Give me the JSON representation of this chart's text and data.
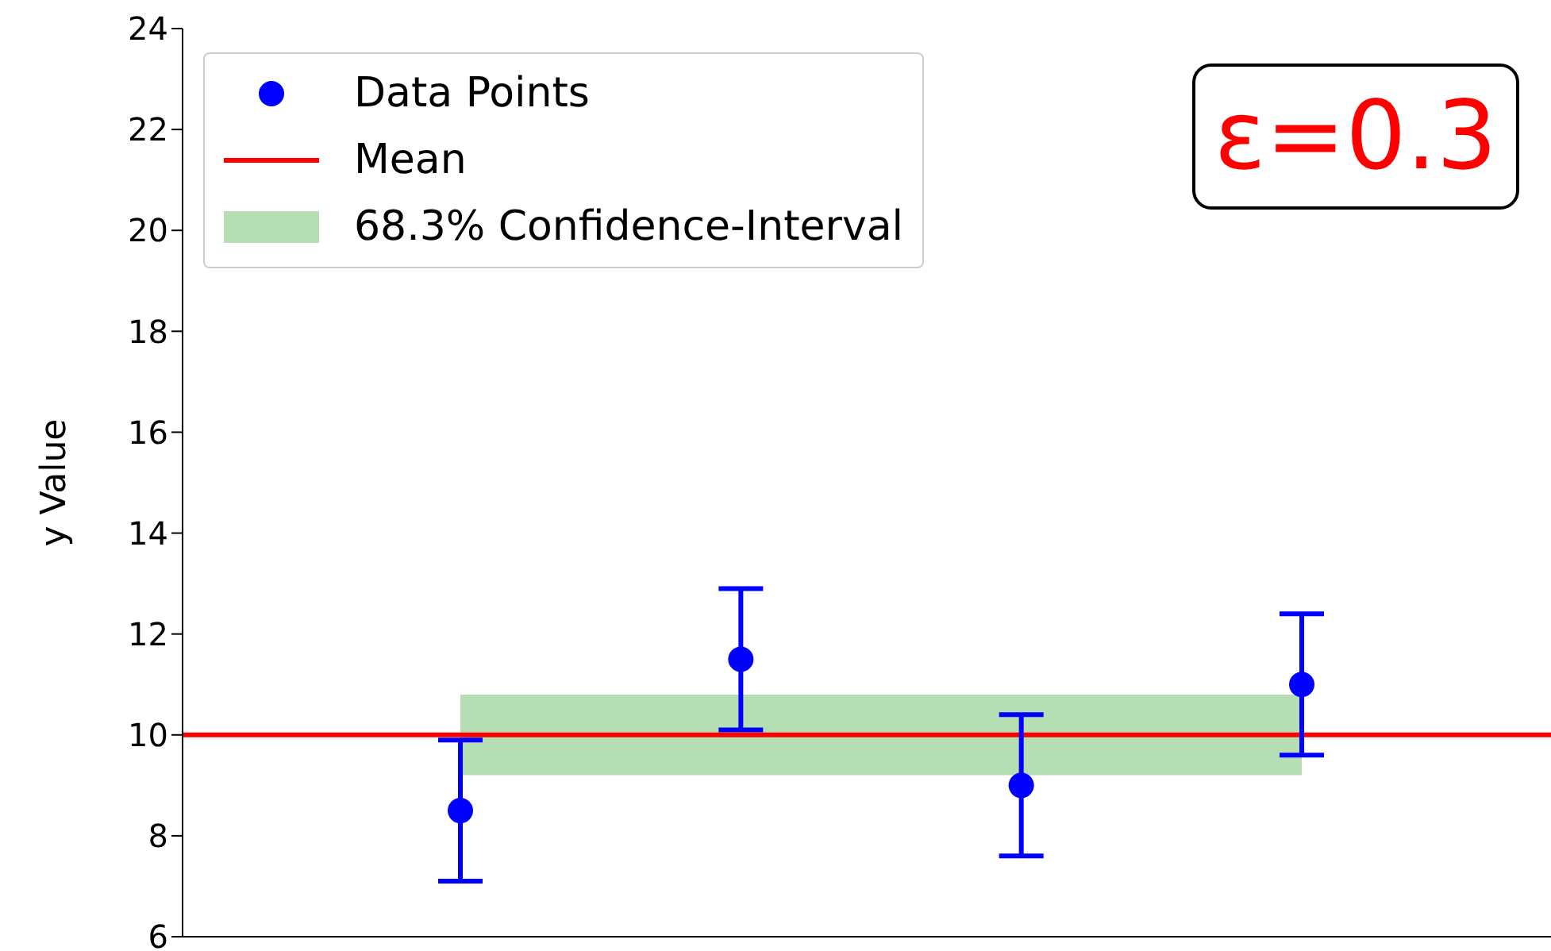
{
  "chart_data": {
    "type": "scatter",
    "ylabel": "y Value",
    "categories": [
      null,
      null,
      null,
      null
    ],
    "series": [
      {
        "name": "Data Points",
        "color": "#0000ff",
        "values": [
          8.5,
          11.5,
          9.0,
          11.0
        ],
        "errors": [
          1.4,
          1.4,
          1.4,
          1.4
        ]
      }
    ],
    "ylim": [
      6,
      24
    ],
    "yticks": [
      6,
      8,
      10,
      12,
      14,
      16,
      18,
      20,
      22,
      24
    ],
    "tick_labels": "y",
    "marker": "circle",
    "grid": false,
    "legend": "top left",
    "ref_lines": [
      {
        "axis": "y",
        "value": 10,
        "label": "Mean",
        "color": "#ff0000"
      }
    ],
    "bands": [
      {
        "axis": "y",
        "from": 9.2,
        "to": 10.8,
        "label": "68.3% Confidence-Interval",
        "color": "#2ca02c"
      }
    ],
    "annotations": [
      "ε=0.3"
    ]
  }
}
